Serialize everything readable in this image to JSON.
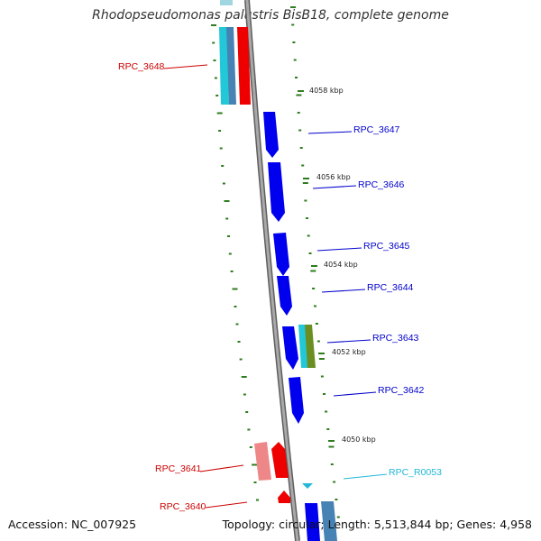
{
  "title": "Rhodopseudomonas palustris BisB18, complete genome",
  "footer": {
    "accession": "Accession: NC_007925",
    "summary": "Topology: circular; Length: 5,513,844 bp; Genes: 4,958"
  },
  "colors": {
    "backbone": "#8a8a8a",
    "tick": "#2e7d1e",
    "forward_gene": "#ee0000",
    "forward_gene_light": "#ee8888",
    "reverse_gene": "#0000ee",
    "cyan_gene": "#22c8d8",
    "steel_gene": "#4682b4",
    "olive_gene": "#6b8e23",
    "rna_label": "#22b8d8"
  },
  "scale_labels": [
    "4058 kbp",
    "4056 kbp",
    "4054 kbp",
    "4052 kbp",
    "4050 kbp"
  ],
  "genes": [
    {
      "label": "RPC_3648",
      "strand": "forward",
      "color": "#cc0000"
    },
    {
      "label": "RPC_3647",
      "strand": "reverse",
      "color": "#0000cc"
    },
    {
      "label": "RPC_3646",
      "strand": "reverse",
      "color": "#0000cc"
    },
    {
      "label": "RPC_3645",
      "strand": "reverse",
      "color": "#0000cc"
    },
    {
      "label": "RPC_3644",
      "strand": "reverse",
      "color": "#0000cc"
    },
    {
      "label": "RPC_3643",
      "strand": "reverse",
      "color": "#0000cc"
    },
    {
      "label": "RPC_3642",
      "strand": "reverse",
      "color": "#0000cc"
    },
    {
      "label": "RPC_3641",
      "strand": "forward",
      "color": "#cc0000"
    },
    {
      "label": "RPC_3640",
      "strand": "forward",
      "color": "#cc0000"
    },
    {
      "label": "RPC_R0053",
      "strand": "reverse",
      "color": "#22b8d8"
    }
  ]
}
